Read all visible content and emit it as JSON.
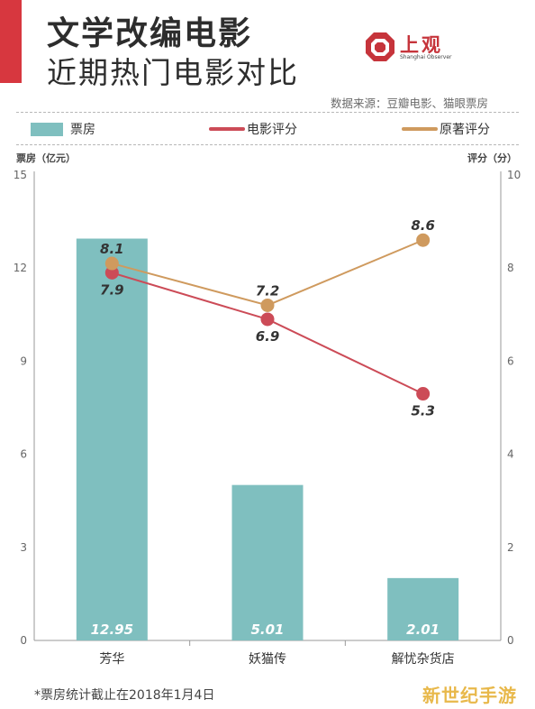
{
  "header": {
    "title_line1": "文学改编电影",
    "title_line2": "近期热门电影对比",
    "source": "数据来源：豆瓣电影、猫眼票房"
  },
  "logo": {
    "cn": "上观",
    "en": "Shanghai Observer"
  },
  "footnote": "*票房统计截止在2018年1月4日",
  "watermark": "新世纪手游",
  "colors": {
    "bar": "#7fbfbf",
    "film_score": "#cc4b57",
    "book_score": "#cf9a5e",
    "accent": "#d7373f"
  },
  "chart_data": {
    "type": "bar",
    "categories": [
      "芳华",
      "妖猫传",
      "解忧杂货店"
    ],
    "series": [
      {
        "name": "票房",
        "type": "bar",
        "axis": "left",
        "values": [
          12.95,
          5.01,
          2.01
        ],
        "labels": [
          "12.95",
          "5.01",
          "2.01"
        ]
      },
      {
        "name": "电影评分",
        "type": "line",
        "axis": "right",
        "values": [
          7.9,
          6.9,
          5.3
        ],
        "labels": [
          "7.9",
          "6.9",
          "5.3"
        ]
      },
      {
        "name": "原著评分",
        "type": "line",
        "axis": "right",
        "values": [
          8.1,
          7.2,
          8.6
        ],
        "labels": [
          "8.1",
          "7.2",
          "8.6"
        ]
      }
    ],
    "ylabel": "票房（亿元）",
    "y2label": "评分（分）",
    "ylim": [
      0,
      15
    ],
    "y2lim": [
      0,
      10
    ],
    "yticks": [
      "0",
      "3",
      "6",
      "9",
      "12",
      "15"
    ],
    "y2ticks": [
      "0",
      "2",
      "4",
      "6",
      "8",
      "10"
    ],
    "legend_position": "top"
  }
}
